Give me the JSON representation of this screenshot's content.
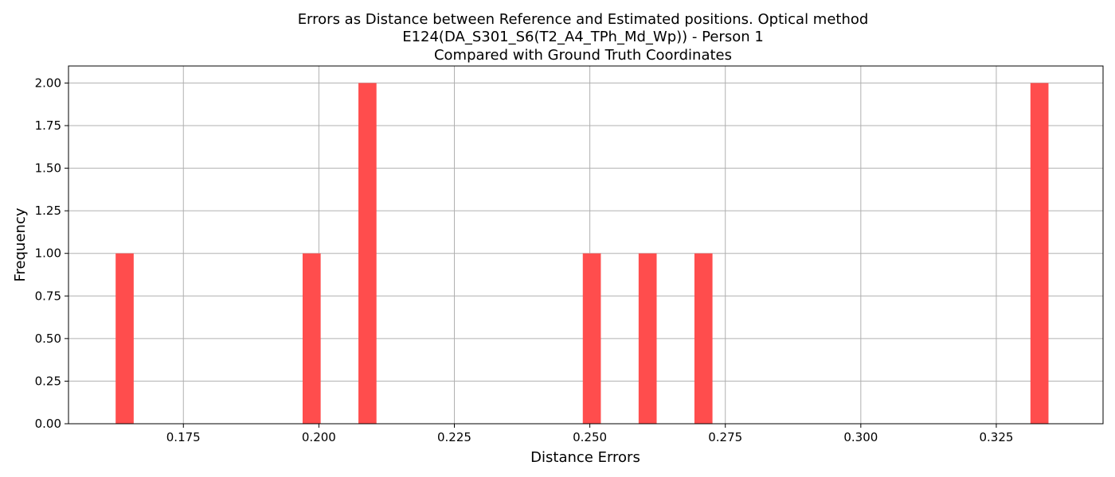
{
  "chart_data": {
    "type": "bar",
    "title_lines": [
      "Errors as Distance between Reference and Estimated positions. Optical method",
      "E124(DA_S301_S6(T2_A4_TPh_Md_Wp)) - Person 1",
      "Compared with Ground Truth Coordinates"
    ],
    "xlabel": "Distance Errors",
    "ylabel": "Frequency",
    "xlim": [
      0.1538,
      0.3447
    ],
    "ylim": [
      0.0,
      2.1
    ],
    "bin_width": 0.00333,
    "grid": true,
    "bar_color": "#ff4d4d",
    "x_ticks": [
      0.175,
      0.2,
      0.225,
      0.25,
      0.275,
      0.3,
      0.325
    ],
    "x_tick_labels": [
      "0.175",
      "0.200",
      "0.225",
      "0.250",
      "0.275",
      "0.300",
      "0.325"
    ],
    "y_ticks": [
      0.0,
      0.25,
      0.5,
      0.75,
      1.0,
      1.25,
      1.5,
      1.75,
      2.0
    ],
    "y_tick_labels": [
      "0.00",
      "0.25",
      "0.50",
      "0.75",
      "1.00",
      "1.25",
      "1.50",
      "1.75",
      "2.00"
    ],
    "bins": [
      {
        "start": 0.1625,
        "count": 1
      },
      {
        "start": 0.197,
        "count": 1
      },
      {
        "start": 0.2073,
        "count": 2
      },
      {
        "start": 0.2487,
        "count": 1
      },
      {
        "start": 0.259,
        "count": 1
      },
      {
        "start": 0.2693,
        "count": 1
      },
      {
        "start": 0.3313,
        "count": 2
      }
    ]
  }
}
